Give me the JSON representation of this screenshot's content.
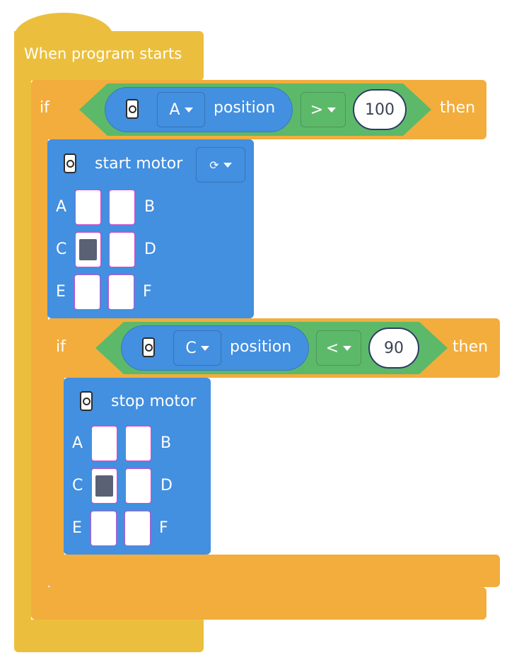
{
  "hat": {
    "label": "When program starts"
  },
  "if_outer": {
    "if_label": "if",
    "then_label": "then",
    "port": "A",
    "reporter": "position",
    "operator": ">",
    "value": "100",
    "port_icon": "motor-icon"
  },
  "start_motor": {
    "label": "start motor",
    "direction_symbol": "⟳",
    "ports": [
      {
        "name": "A",
        "selected": false
      },
      {
        "name": "B",
        "selected": false
      },
      {
        "name": "C",
        "selected": true
      },
      {
        "name": "D",
        "selected": false
      },
      {
        "name": "E",
        "selected": false
      },
      {
        "name": "F",
        "selected": false
      }
    ]
  },
  "if_inner": {
    "if_label": "if",
    "then_label": "then",
    "port": "C",
    "reporter": "position",
    "operator": "<",
    "value": "90"
  },
  "stop_motor": {
    "label": "stop motor",
    "ports": [
      {
        "name": "A",
        "selected": false
      },
      {
        "name": "B",
        "selected": false
      },
      {
        "name": "C",
        "selected": true
      },
      {
        "name": "D",
        "selected": false
      },
      {
        "name": "E",
        "selected": false
      },
      {
        "name": "F",
        "selected": false
      }
    ]
  },
  "colors": {
    "event": "#EBBF3D",
    "control": "#F2AD3C",
    "motor": "#438FE0",
    "operator": "#5DB96A"
  }
}
